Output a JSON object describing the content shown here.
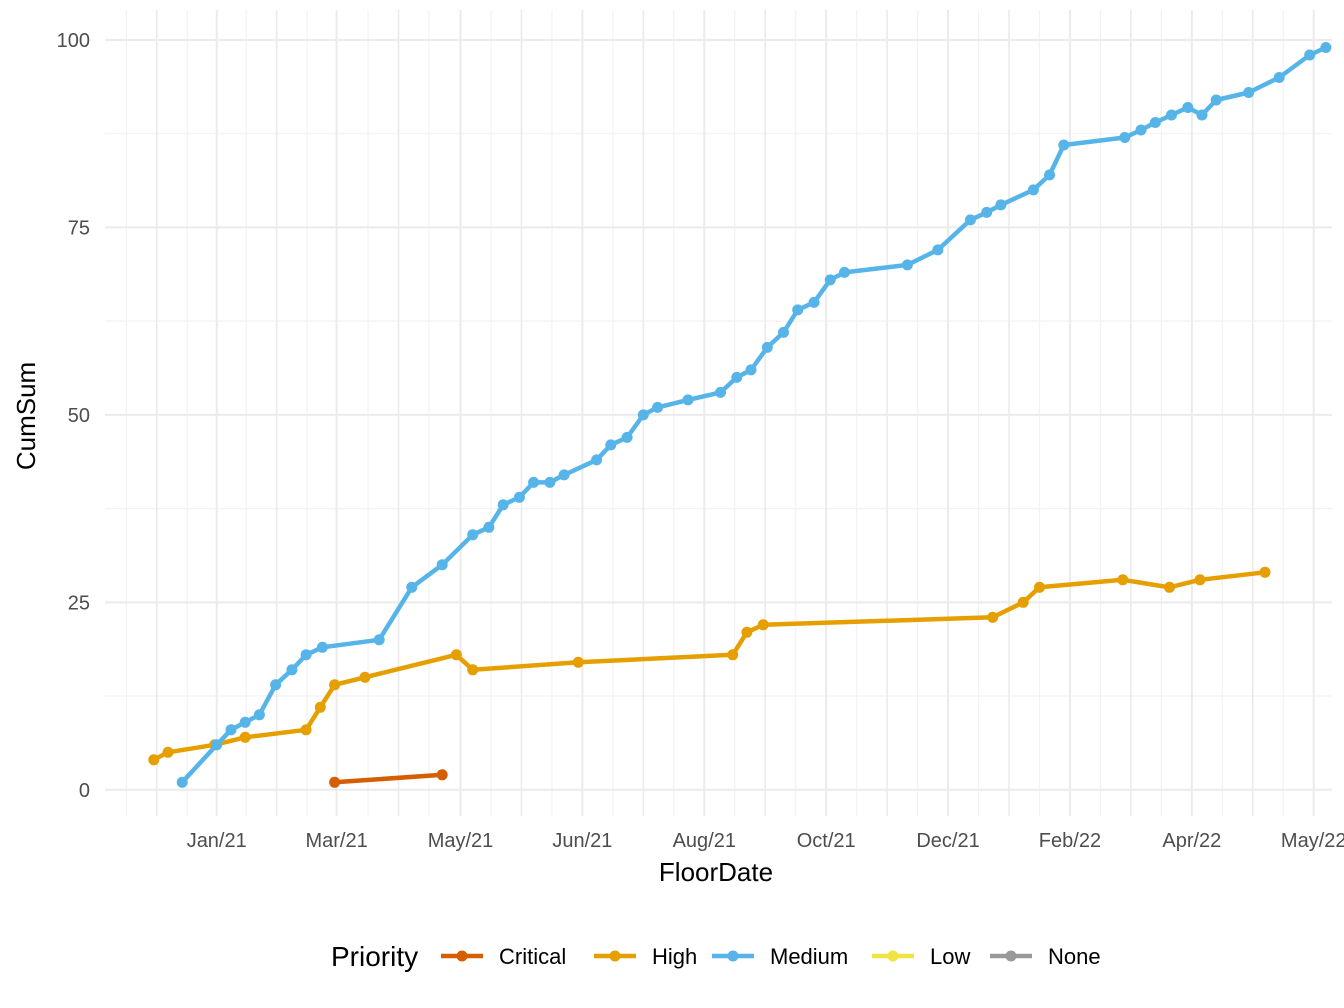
{
  "chart_data": {
    "type": "line",
    "xlabel": "FloorDate",
    "ylabel": "CumSum",
    "x_ticks": [
      "Jan/21",
      "Mar/21",
      "May/21",
      "Jun/21",
      "Aug/21",
      "Oct/21",
      "Dec/21",
      "Feb/22",
      "Apr/22",
      "May/22"
    ],
    "x_tick_dates": [
      "2021-01-01",
      "2021-03-01",
      "2021-05-01",
      "2021-06-30",
      "2021-08-29",
      "2021-10-28",
      "2021-12-27",
      "2022-02-25",
      "2022-04-26",
      "2022-06-25"
    ],
    "xlim": [
      "2020-11-07",
      "2022-07-04"
    ],
    "y_ticks": [
      0,
      25,
      50,
      75,
      100
    ],
    "ylim": [
      -3.5,
      104
    ],
    "grid": true,
    "legend": {
      "title": "Priority",
      "position": "bottom",
      "entries": [
        "Critical",
        "High",
        "Medium",
        "Low",
        "None"
      ]
    },
    "series": [
      {
        "name": "Critical",
        "color": "#D55E00",
        "points": [
          [
            "2021-02-28",
            1
          ],
          [
            "2021-04-22",
            2
          ]
        ]
      },
      {
        "name": "High",
        "color": "#E69F00",
        "points": [
          [
            "2020-12-01",
            4
          ],
          [
            "2020-12-08",
            5
          ],
          [
            "2020-12-31",
            6
          ],
          [
            "2021-01-15",
            7
          ],
          [
            "2021-02-14",
            8
          ],
          [
            "2021-02-21",
            11
          ],
          [
            "2021-02-28",
            14
          ],
          [
            "2021-03-15",
            15
          ],
          [
            "2021-04-29",
            18
          ],
          [
            "2021-05-07",
            16
          ],
          [
            "2021-06-28",
            17
          ],
          [
            "2021-09-12",
            18
          ],
          [
            "2021-09-19",
            21
          ],
          [
            "2021-09-27",
            22
          ],
          [
            "2022-01-18",
            23
          ],
          [
            "2022-02-02",
            25
          ],
          [
            "2022-02-10",
            27
          ],
          [
            "2022-03-23",
            28
          ],
          [
            "2022-04-15",
            27
          ],
          [
            "2022-04-30",
            28
          ],
          [
            "2022-06-01",
            29
          ]
        ]
      },
      {
        "name": "Medium",
        "color": "#56B4E9",
        "points": [
          [
            "2020-12-15",
            1
          ],
          [
            "2021-01-01",
            6
          ],
          [
            "2021-01-08",
            8
          ],
          [
            "2021-01-15",
            9
          ],
          [
            "2021-01-22",
            10
          ],
          [
            "2021-01-30",
            14
          ],
          [
            "2021-02-07",
            16
          ],
          [
            "2021-02-14",
            18
          ],
          [
            "2021-02-22",
            19
          ],
          [
            "2021-03-22",
            20
          ],
          [
            "2021-04-07",
            27
          ],
          [
            "2021-04-22",
            30
          ],
          [
            "2021-05-07",
            34
          ],
          [
            "2021-05-15",
            35
          ],
          [
            "2021-05-22",
            38
          ],
          [
            "2021-05-30",
            39
          ],
          [
            "2021-06-06",
            41
          ],
          [
            "2021-06-14",
            41
          ],
          [
            "2021-06-21",
            42
          ],
          [
            "2021-07-07",
            44
          ],
          [
            "2021-07-14",
            46
          ],
          [
            "2021-07-22",
            47
          ],
          [
            "2021-07-30",
            50
          ],
          [
            "2021-08-06",
            51
          ],
          [
            "2021-08-21",
            52
          ],
          [
            "2021-09-06",
            53
          ],
          [
            "2021-09-14",
            55
          ],
          [
            "2021-09-21",
            56
          ],
          [
            "2021-09-29",
            59
          ],
          [
            "2021-10-07",
            61
          ],
          [
            "2021-10-14",
            64
          ],
          [
            "2021-10-22",
            65
          ],
          [
            "2021-10-30",
            68
          ],
          [
            "2021-11-06",
            69
          ],
          [
            "2021-12-07",
            70
          ],
          [
            "2021-12-22",
            72
          ],
          [
            "2022-01-07",
            76
          ],
          [
            "2022-01-15",
            77
          ],
          [
            "2022-01-22",
            78
          ],
          [
            "2022-02-07",
            80
          ],
          [
            "2022-02-15",
            82
          ],
          [
            "2022-02-22",
            86
          ],
          [
            "2022-03-24",
            87
          ],
          [
            "2022-04-01",
            88
          ],
          [
            "2022-04-08",
            89
          ],
          [
            "2022-04-16",
            90
          ],
          [
            "2022-04-24",
            91
          ],
          [
            "2022-05-01",
            90
          ],
          [
            "2022-05-08",
            92
          ],
          [
            "2022-05-24",
            93
          ],
          [
            "2022-06-08",
            95
          ],
          [
            "2022-06-23",
            98
          ],
          [
            "2022-07-01",
            99
          ]
        ]
      },
      {
        "name": "Low",
        "color": "#F0E442",
        "points": []
      },
      {
        "name": "None",
        "color": "#999999",
        "points": []
      }
    ]
  }
}
